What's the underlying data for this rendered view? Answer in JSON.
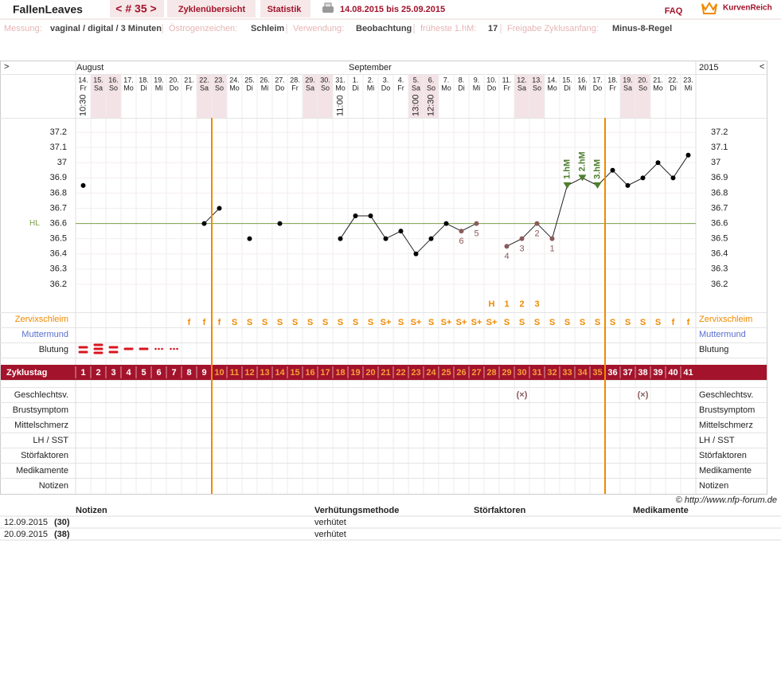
{
  "header": {
    "user": "FallenLeaves",
    "cycle_nav": "< # 35 >",
    "tabs": [
      "Zyklenübersicht",
      "Statistik"
    ],
    "period": "14.08.2015 bis 25.09.2015",
    "faq": "FAQ",
    "brand": "KurvenReich"
  },
  "settings": [
    {
      "label": "Messung:",
      "value": "vaginal / digital / 3 Minuten"
    },
    {
      "label": "Östrogenzeichen:",
      "value": "Schleim"
    },
    {
      "label": "Verwendung:",
      "value": "Beobachtung"
    },
    {
      "label": "früheste 1.hM:",
      "value": "17"
    },
    {
      "label": "Freigabe Zyklusanfang:",
      "value": "Minus-8-Regel"
    }
  ],
  "chart_data": {
    "type": "line",
    "nav_left": ">",
    "nav_right": "<",
    "months": [
      "August",
      "September"
    ],
    "year": "2015",
    "categories": [
      "14.",
      "15.",
      "16.",
      "17.",
      "18.",
      "19.",
      "20.",
      "21.",
      "22.",
      "23.",
      "24.",
      "25.",
      "26.",
      "27.",
      "28.",
      "29.",
      "30.",
      "31.",
      "1.",
      "2.",
      "3.",
      "4.",
      "5.",
      "6.",
      "7.",
      "8.",
      "9.",
      "10.",
      "11.",
      "12.",
      "13.",
      "14.",
      "15.",
      "16.",
      "17.",
      "18.",
      "19.",
      "20.",
      "21.",
      "22.",
      "23."
    ],
    "weekdays": [
      "Fr",
      "Sa",
      "So",
      "Mo",
      "Di",
      "Mi",
      "Do",
      "Fr",
      "Sa",
      "So",
      "Mo",
      "Di",
      "Mi",
      "Do",
      "Fr",
      "Sa",
      "So",
      "Mo",
      "Di",
      "Mi",
      "Do",
      "Fr",
      "Sa",
      "So",
      "Mo",
      "Di",
      "Mi",
      "Do",
      "Fr",
      "Sa",
      "So",
      "Mo",
      "Di",
      "Mi",
      "Do",
      "Fr",
      "Sa",
      "So",
      "Mo",
      "Di",
      "Mi"
    ],
    "times": [
      "10:30",
      null,
      null,
      null,
      null,
      null,
      null,
      null,
      null,
      null,
      null,
      null,
      null,
      null,
      null,
      null,
      null,
      "11:00",
      null,
      null,
      null,
      null,
      "13:00",
      "12:30",
      null,
      null,
      null,
      null,
      null,
      null,
      null,
      null,
      null,
      null,
      null,
      null,
      null,
      null,
      null,
      null,
      null
    ],
    "values": [
      36.85,
      null,
      null,
      null,
      null,
      null,
      null,
      null,
      36.6,
      36.7,
      null,
      36.5,
      null,
      36.6,
      null,
      null,
      null,
      36.5,
      36.65,
      36.65,
      36.5,
      36.55,
      36.4,
      36.5,
      36.6,
      36.55,
      36.6,
      null,
      36.45,
      36.5,
      36.6,
      36.5,
      36.85,
      36.9,
      36.85,
      36.95,
      36.85,
      36.9,
      37.0,
      36.9,
      37.05
    ],
    "color": "#222222",
    "low_labels": [
      null,
      null,
      null,
      null,
      null,
      null,
      null,
      null,
      null,
      null,
      null,
      null,
      null,
      null,
      null,
      null,
      null,
      null,
      null,
      null,
      null,
      null,
      null,
      null,
      null,
      "6",
      "5",
      null,
      "4",
      "3",
      "2",
      "1",
      null,
      null,
      null,
      null,
      null,
      null,
      null,
      null,
      null
    ],
    "high_labels": [
      null,
      null,
      null,
      null,
      null,
      null,
      null,
      null,
      null,
      null,
      null,
      null,
      null,
      null,
      null,
      null,
      null,
      null,
      null,
      null,
      null,
      null,
      null,
      null,
      null,
      null,
      null,
      null,
      null,
      null,
      null,
      null,
      "1.hM",
      "2.hM",
      "3.hM",
      null,
      null,
      null,
      null,
      null,
      null
    ],
    "ylim": [
      36.1,
      37.3
    ],
    "yticks": [
      36.2,
      36.3,
      36.4,
      36.5,
      36.6,
      36.7,
      36.8,
      36.9,
      37,
      37.1,
      37.2
    ],
    "grid": true,
    "reference_line": {
      "label": "HL",
      "value": 36.6,
      "color": "#7aa04a"
    }
  },
  "rows": {
    "peak": [
      null,
      null,
      null,
      null,
      null,
      null,
      null,
      null,
      null,
      null,
      null,
      null,
      null,
      null,
      null,
      null,
      null,
      null,
      null,
      null,
      null,
      null,
      null,
      null,
      null,
      null,
      null,
      "H",
      "1",
      "2",
      "3",
      null,
      null,
      null,
      null,
      null,
      null,
      null,
      null,
      null,
      null
    ],
    "zervixschleim": {
      "label": "Zervixschleim",
      "values": [
        null,
        null,
        null,
        null,
        null,
        null,
        null,
        "f",
        "f",
        "f",
        "S",
        "S",
        "S",
        "S",
        "S",
        "S",
        "S",
        "S",
        "S",
        "S",
        "S+",
        "S",
        "S+",
        "S",
        "S+",
        "S+",
        "S+",
        "S+",
        "S",
        "S",
        "S",
        "S",
        "S",
        "S",
        "S",
        "S",
        "S",
        "S",
        "S",
        "f",
        "f"
      ]
    },
    "muttermund": {
      "label": "Muttermund"
    },
    "blutung": {
      "label": "Blutung"
    },
    "zyklustag": {
      "label": "Zyklustag",
      "values": [
        1,
        2,
        3,
        4,
        5,
        6,
        7,
        8,
        9,
        10,
        11,
        12,
        13,
        14,
        15,
        16,
        17,
        18,
        19,
        20,
        21,
        22,
        23,
        24,
        25,
        26,
        27,
        28,
        29,
        30,
        31,
        32,
        33,
        34,
        35,
        36,
        37,
        38,
        39,
        40,
        41
      ]
    },
    "geschlechtsverkehr": {
      "label": "Geschlechtsv.",
      "values": [
        null,
        null,
        null,
        null,
        null,
        null,
        null,
        null,
        null,
        null,
        null,
        null,
        null,
        null,
        null,
        null,
        null,
        null,
        null,
        null,
        null,
        null,
        null,
        null,
        null,
        null,
        null,
        null,
        null,
        "(×)",
        null,
        null,
        null,
        null,
        null,
        null,
        null,
        "(×)",
        null,
        null,
        null
      ]
    },
    "brustsymptom": {
      "label": "Brustsymptom"
    },
    "mittelschmerz": {
      "label": "Mittelschmerz"
    },
    "lh_sst": {
      "label": "LH / SST"
    },
    "stoerfaktoren": {
      "label": "Störfaktoren"
    },
    "medikamente": {
      "label": "Medikamente"
    },
    "notizen": {
      "label": "Notizen"
    }
  },
  "copyright": "© http://www.nfp-forum.de",
  "notes_table": {
    "headers": [
      "Notizen",
      "Verhütungsmethode",
      "Störfaktoren",
      "Medikamente"
    ],
    "rows": [
      [
        "12.09.2015",
        "(30)",
        "verhütet"
      ],
      [
        "20.09.2015",
        "(38)",
        "verhütet"
      ]
    ]
  }
}
